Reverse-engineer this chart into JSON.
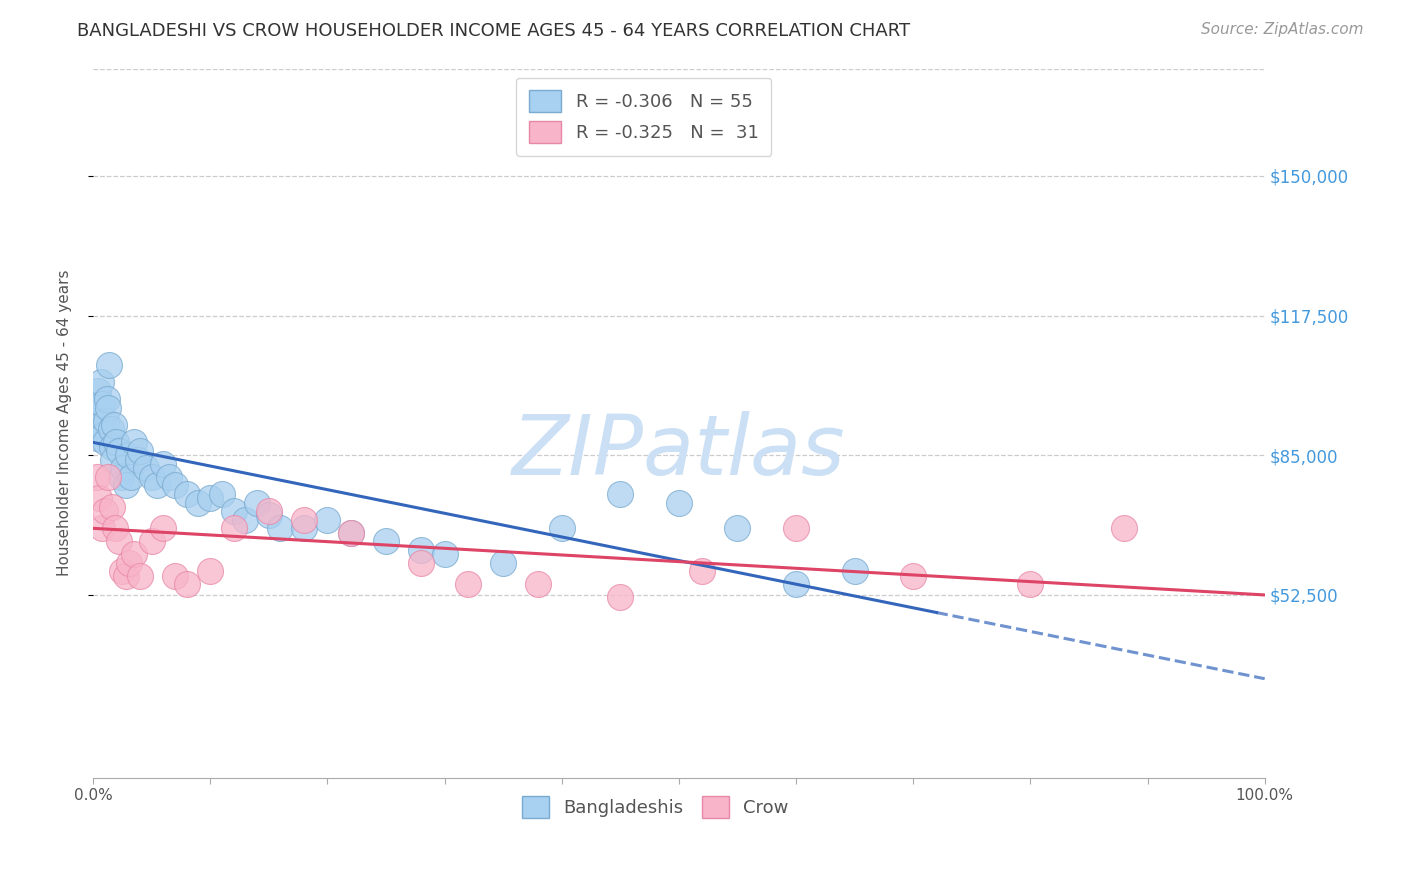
{
  "title": "BANGLADESHI VS CROW HOUSEHOLDER INCOME AGES 45 - 64 YEARS CORRELATION CHART",
  "source": "Source: ZipAtlas.com",
  "ylabel": "Householder Income Ages 45 - 64 years",
  "xlabel": "",
  "xlim": [
    0.0,
    100.0
  ],
  "ylim": [
    10000,
    175000
  ],
  "yticks": [
    52500,
    85000,
    117500,
    150000
  ],
  "ytick_labels": [
    "$52,500",
    "$85,000",
    "$117,500",
    "$150,000"
  ],
  "xticks": [
    0.0,
    10.0,
    20.0,
    30.0,
    40.0,
    50.0,
    60.0,
    70.0,
    80.0,
    90.0,
    100.0
  ],
  "xtick_labels": [
    "0.0%",
    "",
    "",
    "",
    "",
    "",
    "",
    "",
    "",
    "",
    "100.0%"
  ],
  "bg_color": "#ffffff",
  "grid_color": "#cccccc",
  "watermark": "ZIPatlas",
  "watermark_color": "#cce0f5",
  "bangladeshi_color": "#a8d0f0",
  "crow_color": "#f8b4c8",
  "bangladeshi_edge": "#7aaad0",
  "crow_edge": "#e888a8",
  "blue_line_color": "#3366bb",
  "pink_line_color": "#dd4466",
  "legend_r_bangladeshi": "R = -0.306",
  "legend_n_bangladeshi": "N = 55",
  "legend_r_crow": "R = -0.325",
  "legend_n_crow": "N =  31",
  "bangladeshi_x": [
    0.2,
    0.3,
    0.4,
    0.5,
    0.6,
    0.7,
    0.8,
    0.9,
    1.0,
    1.1,
    1.2,
    1.3,
    1.4,
    1.5,
    1.6,
    1.7,
    1.8,
    2.0,
    2.2,
    2.4,
    2.6,
    2.8,
    3.0,
    3.2,
    3.5,
    3.8,
    4.0,
    4.5,
    5.0,
    5.5,
    6.0,
    6.5,
    7.0,
    8.0,
    9.0,
    10.0,
    11.0,
    12.0,
    13.0,
    14.0,
    15.0,
    16.0,
    18.0,
    20.0,
    22.0,
    25.0,
    28.0,
    30.0,
    35.0,
    40.0,
    45.0,
    50.0,
    55.0,
    60.0,
    65.0
  ],
  "bangladeshi_y": [
    93000,
    89000,
    100000,
    96000,
    92000,
    102000,
    97000,
    90000,
    88000,
    93000,
    98000,
    96000,
    106000,
    91000,
    87000,
    84000,
    92000,
    88000,
    86000,
    80000,
    82000,
    78000,
    85000,
    80000,
    88000,
    84000,
    86000,
    82000,
    80000,
    78000,
    83000,
    80000,
    78000,
    76000,
    74000,
    75000,
    76000,
    72000,
    70000,
    74000,
    71000,
    68000,
    68000,
    70000,
    67000,
    65000,
    63000,
    62000,
    60000,
    68000,
    76000,
    74000,
    68000,
    55000,
    58000
  ],
  "crow_x": [
    0.3,
    0.5,
    0.8,
    1.0,
    1.3,
    1.6,
    1.9,
    2.2,
    2.5,
    2.8,
    3.1,
    3.5,
    4.0,
    5.0,
    6.0,
    7.0,
    8.0,
    10.0,
    12.0,
    15.0,
    18.0,
    22.0,
    28.0,
    32.0,
    38.0,
    45.0,
    52.0,
    60.0,
    70.0,
    80.0,
    88.0
  ],
  "crow_y": [
    80000,
    75000,
    68000,
    72000,
    80000,
    73000,
    68000,
    65000,
    58000,
    57000,
    60000,
    62000,
    57000,
    65000,
    68000,
    57000,
    55000,
    58000,
    68000,
    72000,
    70000,
    67000,
    60000,
    55000,
    55000,
    52000,
    58000,
    68000,
    57000,
    55000,
    68000
  ],
  "blue_line_x0": 0.0,
  "blue_line_y0": 88000,
  "blue_line_x1": 100.0,
  "blue_line_y1": 33000,
  "blue_line_solid_end": 72.0,
  "pink_line_x0": 0.0,
  "pink_line_y0": 68000,
  "pink_line_x1": 100.0,
  "pink_line_y1": 52500,
  "title_fontsize": 13,
  "axis_label_fontsize": 11,
  "tick_fontsize": 11,
  "legend_fontsize": 13,
  "watermark_fontsize": 60,
  "source_fontsize": 11
}
